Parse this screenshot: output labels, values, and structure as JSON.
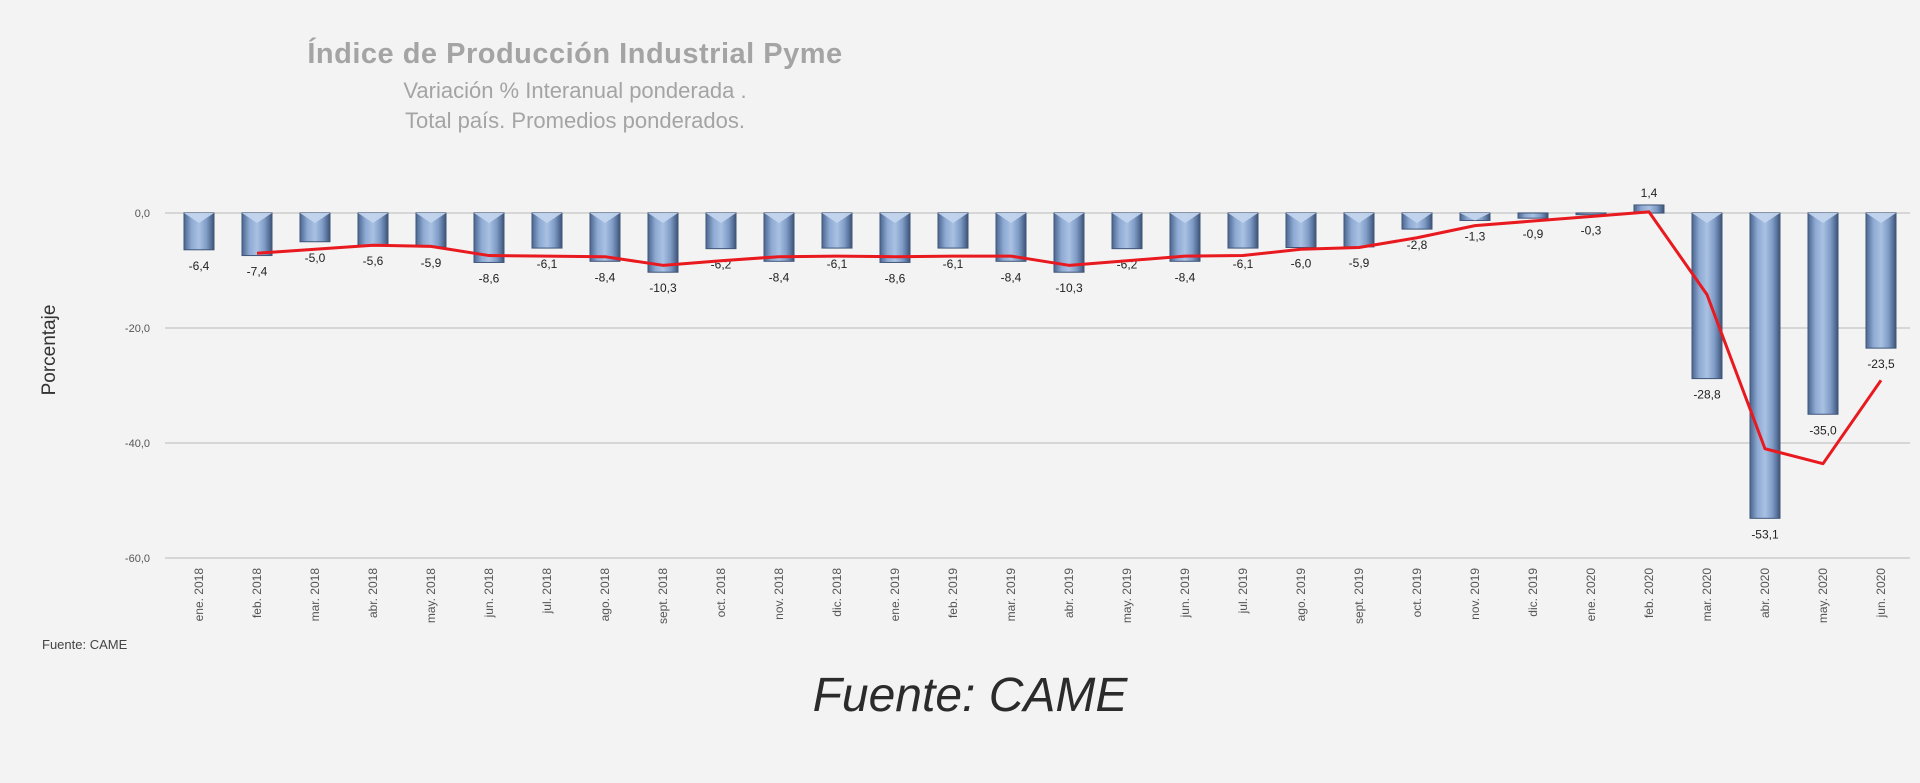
{
  "chart_data": {
    "type": "bar",
    "title": "Índice de Producción Industrial Pyme",
    "subtitle_line1": "Variación % Interanual ponderada .",
    "subtitle_line2": "Total país. Promedios ponderados.",
    "ylabel": "Porcentaje",
    "source": "Fuente: CAME",
    "ylim": [
      -60,
      0
    ],
    "yticks": [
      0,
      -20,
      -40,
      -60
    ],
    "ytick_labels": [
      "0,0",
      "-20,0",
      "-40,0",
      "-60,0"
    ],
    "grid": true,
    "categories": [
      "ene. 2018",
      "feb. 2018",
      "mar. 2018",
      "abr. 2018",
      "may. 2018",
      "jun. 2018",
      "jul. 2018",
      "ago. 2018",
      "sept. 2018",
      "oct. 2018",
      "nov. 2018",
      "dic. 2018",
      "ene. 2019",
      "feb. 2019",
      "mar. 2019",
      "abr. 2019",
      "may. 2019",
      "jun. 2019",
      "jul. 2019",
      "ago. 2019",
      "sept. 2019",
      "oct. 2019",
      "nov. 2019",
      "dic. 2019",
      "ene. 2020",
      "feb. 2020",
      "mar. 2020",
      "abr. 2020",
      "may. 2020",
      "jun. 2020"
    ],
    "values": [
      -6.4,
      -7.4,
      -5.0,
      -5.6,
      -5.9,
      -8.6,
      -6.1,
      -8.4,
      -10.3,
      -6.2,
      -8.4,
      -6.1,
      -8.6,
      -6.1,
      -8.4,
      -10.3,
      -6.2,
      -8.4,
      -6.1,
      -6.0,
      -5.9,
      -2.8,
      -1.3,
      -0.9,
      -0.3,
      1.4,
      -28.8,
      -53.1,
      -35.0,
      -23.5
    ],
    "value_labels": [
      "-6,4",
      "-7,4",
      "-5,0",
      "-5,6",
      "-5,9",
      "-8,6",
      "-6,1",
      "-8,4",
      "-10,3",
      "-6,2",
      "-8,4",
      "-6,1",
      "-8,6",
      "-6,1",
      "-8,4",
      "-10,3",
      "-6,2",
      "-8,4",
      "-6,1",
      "-6,0",
      "-5,9",
      "-2,8",
      "-1,3",
      "-0,9",
      "-0,3",
      "1,4",
      "-28,8",
      "-53,1",
      "-35,0",
      "-23,5"
    ],
    "trend_line": [
      null,
      -7.0,
      -6.3,
      -5.6,
      -5.8,
      -7.4,
      -7.5,
      -7.6,
      -9.1,
      -8.3,
      -7.6,
      -7.5,
      -7.6,
      -7.5,
      -7.5,
      -9.1,
      -8.3,
      -7.5,
      -7.4,
      -6.3,
      -6.0,
      -4.3,
      -2.2,
      -1.4,
      -0.6,
      0.2,
      -14.2,
      -41.0,
      -43.6,
      -29.1
    ],
    "colors": {
      "bar": "#7f9cc7",
      "bar_edge": "#3f5578",
      "trend": "#e8191f",
      "grid": "#d6d6d6"
    }
  }
}
